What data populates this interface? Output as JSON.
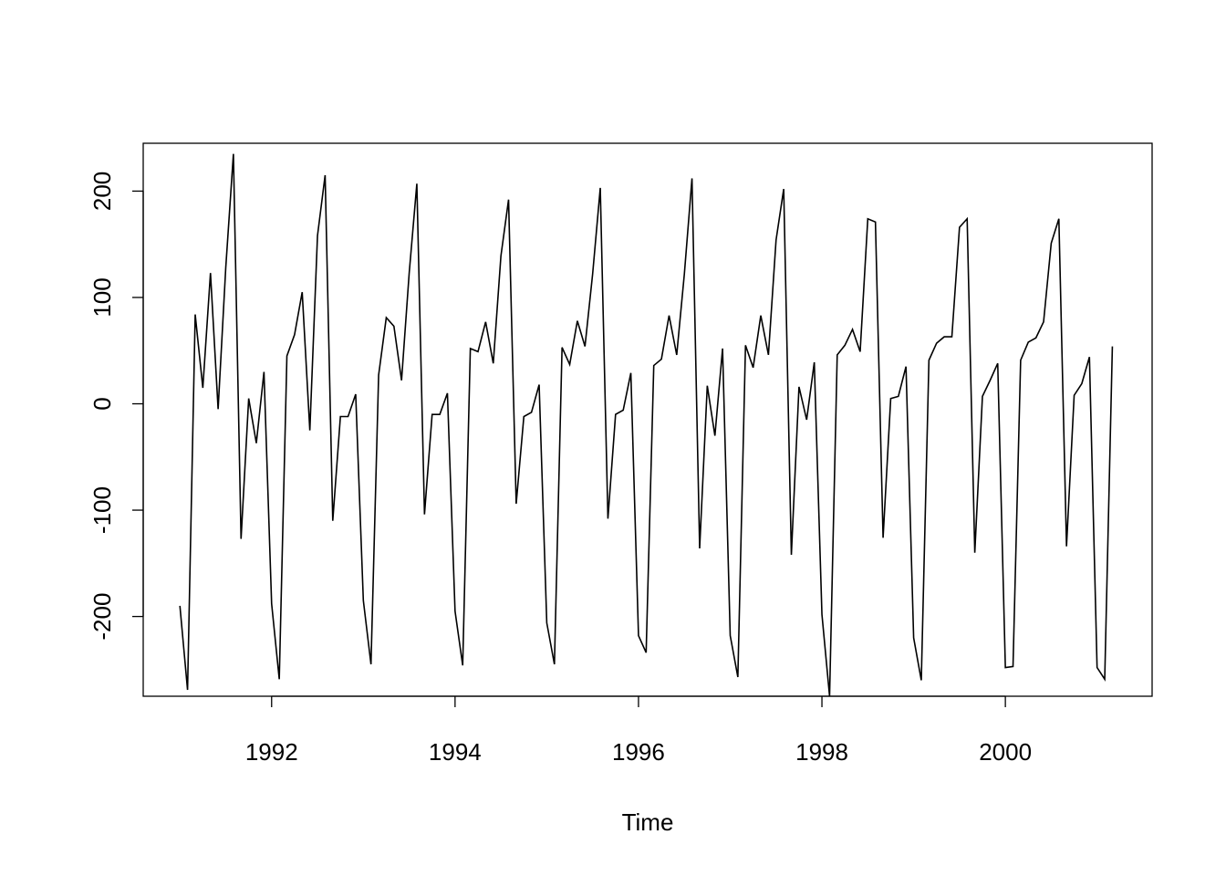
{
  "chart_data": {
    "type": "line",
    "title": "",
    "xlabel": "Time",
    "ylabel": "",
    "xlim": [
      1990.6,
      2001.6
    ],
    "ylim": [
      -275,
      245
    ],
    "xticks": [
      1992,
      1994,
      1996,
      1998,
      2000
    ],
    "xtick_labels": [
      "1992",
      "1994",
      "1996",
      "1998",
      "2000"
    ],
    "yticks": [
      -200,
      -100,
      0,
      100,
      200
    ],
    "ytick_labels": [
      "-200",
      "-100",
      "0",
      "100",
      "200"
    ],
    "grid": false,
    "legend": "none",
    "start": 1991.0,
    "frequency": 12,
    "series": [
      {
        "values": [
          -190,
          -269,
          84,
          15,
          123,
          -5,
          128,
          235,
          -127,
          5,
          -37,
          30,
          -188,
          -259,
          45,
          65,
          105,
          -25,
          158,
          215,
          -110,
          -12,
          -12,
          9,
          -185,
          -245,
          27,
          81,
          73,
          22,
          123,
          207,
          -104,
          -10,
          -10,
          10,
          -195,
          -246,
          52,
          49,
          77,
          38,
          139,
          192,
          -94,
          -12,
          -8,
          18,
          -206,
          -245,
          53,
          37,
          78,
          54,
          122,
          203,
          -108,
          -10,
          -6,
          29,
          -218,
          -234,
          36,
          42,
          83,
          46,
          122,
          212,
          -136,
          17,
          -30,
          52,
          -218,
          -257,
          55,
          34,
          83,
          46,
          154,
          202,
          -142,
          16,
          -15,
          39,
          -198,
          -275,
          46,
          55,
          70,
          49,
          174,
          171,
          -126,
          5,
          7,
          35,
          -220,
          -260,
          41,
          57,
          63,
          63,
          166,
          174,
          -140,
          7,
          22,
          38,
          -248,
          -247,
          41,
          58,
          62,
          77,
          151,
          174,
          -134,
          8,
          19,
          44,
          -248,
          -259,
          54
        ]
      }
    ]
  }
}
